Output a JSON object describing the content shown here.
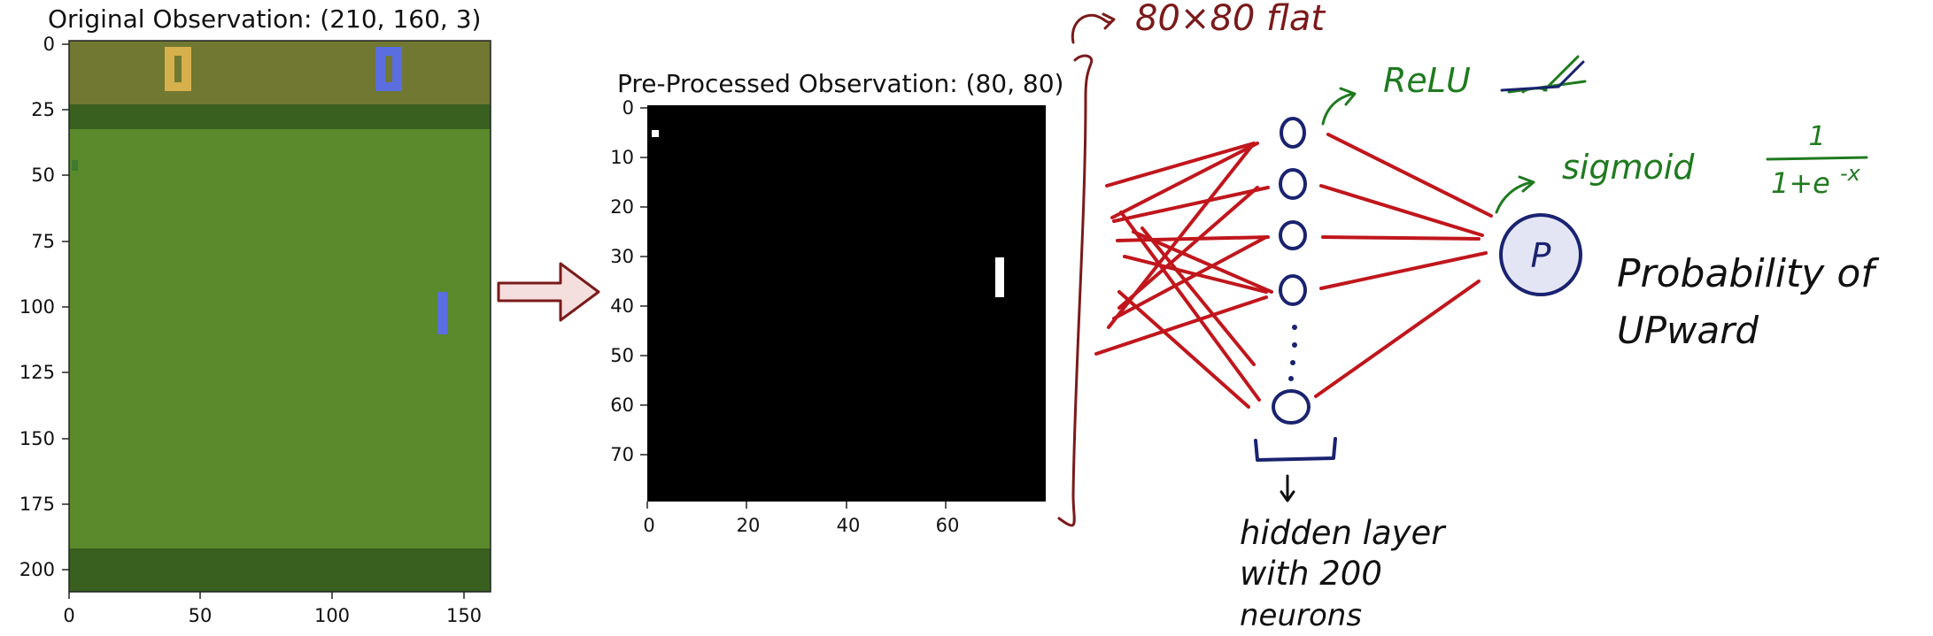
{
  "left_plot": {
    "title": "Original Observation: (210, 160, 3)",
    "x_ticks": [
      "0",
      "50",
      "100",
      "150"
    ],
    "y_ticks": [
      "0",
      "25",
      "50",
      "75",
      "100",
      "125",
      "150",
      "175",
      "200"
    ],
    "colors": {
      "score_band": "#707832",
      "playfield": "#5a8a2c",
      "border": "#3a6020",
      "left_paddle": "#d6b04c",
      "right_paddle": "#5a6ee0",
      "ball": "#5a6ee0"
    }
  },
  "right_plot": {
    "title": "Pre-Processed Observation:  (80, 80)",
    "x_ticks": [
      "0",
      "20",
      "40",
      "60"
    ],
    "y_ticks": [
      "0",
      "10",
      "20",
      "30",
      "40",
      "50",
      "60",
      "70"
    ],
    "colors": {
      "background": "#000000",
      "pixels": "#ffffff"
    }
  },
  "annotations": {
    "flat": "80×80 flat",
    "relu": "ReLU",
    "sigmoid": "sigmoid",
    "sigmoid_formula_top": "1",
    "sigmoid_formula_bottom": "1+e",
    "sigmoid_formula_exp": "-x",
    "output_node": "P",
    "output_label_line1": "Probability of",
    "output_label_line2": "UPward",
    "hidden_label_line1": "hidden layer",
    "hidden_label_line2": "with 200",
    "hidden_label_line3": "neurons"
  },
  "colors": {
    "arrow_fill": "#f5dede",
    "arrow_stroke": "#7a1a1a",
    "brace": "#7a1a1a",
    "connections": "#c0161c",
    "neurons": "#1a2370",
    "output_fill": "#e4e5f4",
    "green_text": "#1f7a1f",
    "dark_red_text": "#7a1a1a"
  }
}
